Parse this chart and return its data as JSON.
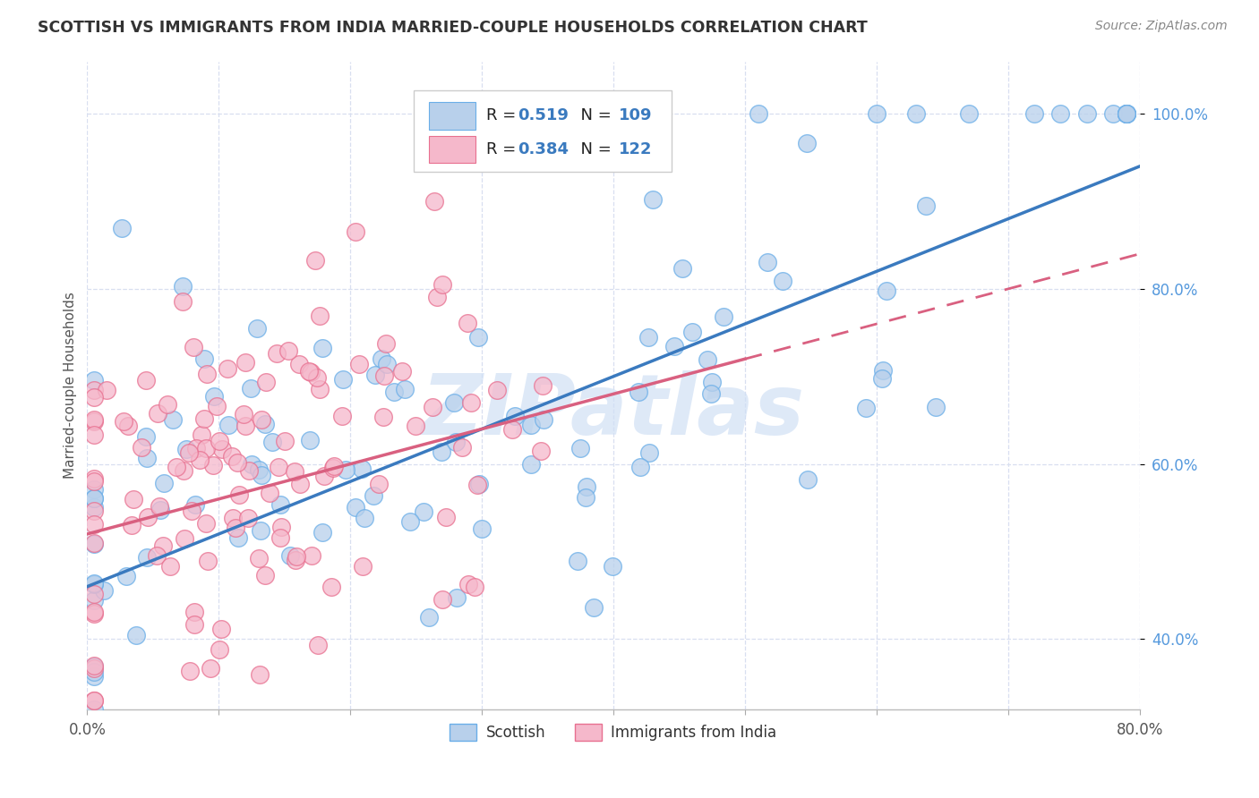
{
  "title": "SCOTTISH VS IMMIGRANTS FROM INDIA MARRIED-COUPLE HOUSEHOLDS CORRELATION CHART",
  "source": "Source: ZipAtlas.com",
  "ylabel": "Married-couple Households",
  "x_min": 0.0,
  "x_max": 0.8,
  "y_min": 0.32,
  "y_max": 1.06,
  "watermark": "ZIPatlas",
  "legend_R1": "0.519",
  "legend_N1": "109",
  "legend_R2": "0.384",
  "legend_N2": "122",
  "color_scottish_fill": "#b8d0eb",
  "color_scottish_edge": "#6aaee8",
  "color_india_fill": "#f5b8cb",
  "color_india_edge": "#e87090",
  "color_line_scottish": "#3a7abf",
  "color_line_india": "#d96080",
  "background_color": "#ffffff",
  "grid_color": "#d8dff0",
  "watermark_color": "#d0e0f5",
  "title_color": "#333333",
  "source_color": "#888888",
  "ytick_color": "#5599dd",
  "xtick_color": "#555555"
}
